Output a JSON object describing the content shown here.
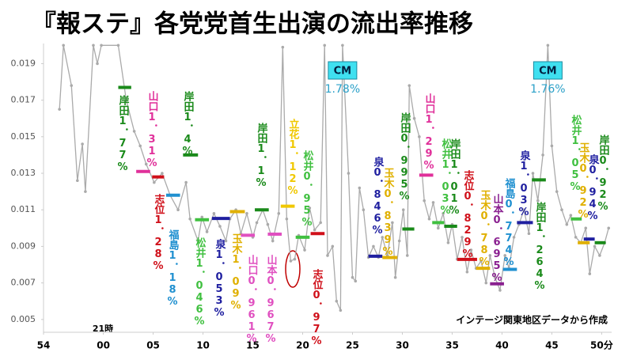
{
  "chart_data": {
    "type": "line",
    "title": "『報ステ』各党党首生出演の流出率推移",
    "source": "インテージ関東地区データから作成",
    "hour_label": "21時",
    "color": "#aaaaaa",
    "x": [
      1.6,
      2.0,
      2.8,
      3.4,
      3.9,
      4.2,
      5.0,
      5.4,
      5.8,
      7.5,
      8.3,
      9.1,
      9.7,
      10.3,
      11.1,
      11.9,
      12.7,
      13.5,
      14.3,
      14.7,
      15.5,
      15.9,
      16.4,
      17.1,
      17.7,
      18.3,
      18.7,
      19.3,
      19.8,
      20.4,
      21.0,
      21.4,
      22.0,
      22.5,
      23.0,
      23.6,
      24.0,
      24.4,
      24.8,
      25.2,
      25.6,
      26.2,
      26.7,
      27.2,
      27.8,
      28.2,
      28.5,
      29.0,
      29.4,
      29.8,
      30.0,
      30.6,
      31.0,
      31.3,
      31.7,
      32.1,
      32.6,
      33.1,
      33.6,
      34.0,
      34.5,
      35.0,
      35.3,
      35.7,
      36.1,
      36.5,
      36.7,
      37.2,
      37.7,
      38.2,
      38.7,
      39.1,
      39.6,
      40.1,
      40.6,
      41.0,
      41.5,
      42.0,
      42.5,
      42.9,
      43.4,
      43.9,
      44.4,
      44.8,
      45.3,
      45.8,
      46.3,
      46.7,
      47.2,
      47.7,
      48.2,
      48.7,
      49.1,
      49.6,
      50.1,
      50.6,
      51.0,
      51.5,
      52.0,
      52.5,
      52.9,
      53.4,
      53.9,
      54.4,
      54.8,
      55.3,
      55.8,
      56.3,
      56.7
    ],
    "values": [
      0.0165,
      0.02,
      0.0178,
      0.0126,
      0.0146,
      0.012,
      0.02,
      0.019,
      0.02,
      0.02,
      0.017,
      0.0153,
      0.0145,
      0.0135,
      0.0125,
      0.013,
      0.0118,
      0.011,
      0.0125,
      0.0105,
      0.0093,
      0.0106,
      0.0098,
      0.0108,
      0.0101,
      0.0093,
      0.0105,
      0.011,
      0.0097,
      0.0108,
      0.0095,
      0.0103,
      0.011,
      0.0102,
      0.0093,
      0.0108,
      0.0199,
      0.0105,
      0.0082,
      0.0083,
      0.0096,
      0.0088,
      0.0111,
      0.0099,
      0.0103,
      0.02,
      0.0085,
      0.009,
      0.006,
      0.0055,
      0.02,
      0.013,
      0.0073,
      0.0071,
      0.0122,
      0.011,
      0.0084,
      0.009,
      0.0084,
      0.0095,
      0.0085,
      0.0103,
      0.0073,
      0.0093,
      0.011,
      0.0085,
      0.0178,
      0.016,
      0.015,
      0.0115,
      0.0105,
      0.0114,
      0.01,
      0.0108,
      0.0092,
      0.0102,
      0.0083,
      0.0095,
      0.0076,
      0.0088,
      0.0078,
      0.0082,
      0.007,
      0.0085,
      0.0073,
      0.0066,
      0.0085,
      0.0078,
      0.0095,
      0.0102,
      0.011,
      0.0097,
      0.013,
      0.0115,
      0.014,
      0.02,
      0.0145,
      0.012,
      0.011,
      0.0102,
      0.0107,
      0.0095,
      0.0092,
      0.01,
      0.0075,
      0.009,
      0.0085,
      0.0092,
      0.01
    ],
    "xlim": [
      0,
      57
    ],
    "ylim": [
      0.0043,
      0.0201
    ],
    "yticks": [
      0.005,
      0.007,
      0.009,
      0.011,
      0.013,
      0.015,
      0.017,
      0.019
    ],
    "xticks": [
      {
        "value": 0,
        "label": "54"
      },
      {
        "value": 6,
        "label": "00"
      },
      {
        "value": 11,
        "label": "05"
      },
      {
        "value": 16,
        "label": "10"
      },
      {
        "value": 21,
        "label": "15"
      },
      {
        "value": 26,
        "label": "20"
      },
      {
        "value": 31,
        "label": "25"
      },
      {
        "value": 36,
        "label": "30"
      },
      {
        "value": 41,
        "label": "35"
      },
      {
        "value": 46,
        "label": "40"
      },
      {
        "value": 51,
        "label": "45"
      },
      {
        "value": 56,
        "label": "50分"
      }
    ],
    "cm_notes": [
      {
        "label": "CM",
        "value_label": "1.78%",
        "x": 30.0
      },
      {
        "label": "CM",
        "value_label": "1.76%",
        "x": 50.6
      }
    ],
    "segments": [
      {
        "label": "岸田1．77%",
        "value": 0.0177,
        "x": [
          7.5,
          8.8
        ],
        "color": "#1a8a1a"
      },
      {
        "label": "山口1．31%",
        "value": 0.0131,
        "x": [
          9.3,
          10.7
        ],
        "color": "#e0309a"
      },
      {
        "label": "志位1．28%",
        "value": 0.0128,
        "x": [
          10.9,
          12.1
        ],
        "color": "#d0101a"
      },
      {
        "label": "福島1．18%",
        "value": 0.0118,
        "x": [
          12.3,
          13.7
        ],
        "color": "#2090d0"
      },
      {
        "label": "岸田1．4%",
        "value": 0.014,
        "x": [
          14.0,
          15.5
        ],
        "color": "#1a8a1a"
      },
      {
        "label": "松井1．046%",
        "value": 0.01046,
        "x": [
          15.2,
          16.6
        ],
        "color": "#40c040"
      },
      {
        "label": "泉1．053%",
        "value": 0.01053,
        "x": [
          16.9,
          18.7
        ],
        "color": "#2020a0"
      },
      {
        "label": "玉木1．09%",
        "value": 0.0109,
        "x": [
          18.7,
          20.2
        ],
        "color": "#e0b000"
      },
      {
        "label": "山口0．961%",
        "value": 0.00961,
        "x": [
          19.8,
          21.2
        ],
        "color": "#e050c0"
      },
      {
        "label": "岸田1．1%",
        "value": 0.011,
        "x": [
          21.2,
          22.6
        ],
        "color": "#1a8a1a"
      },
      {
        "label": "山本0．967%",
        "value": 0.00967,
        "x": [
          22.5,
          23.9
        ],
        "color": "#e050c0"
      },
      {
        "label": "立花1．12%",
        "value": 0.0112,
        "x": [
          23.8,
          25.2
        ],
        "color": "#f0c800"
      },
      {
        "label": "松井0．95%",
        "value": 0.0095,
        "x": [
          25.3,
          26.7
        ],
        "color": "#40c040"
      },
      {
        "label": "志位0．97%",
        "value": 0.0097,
        "x": [
          26.8,
          28.2
        ],
        "color": "#d0101a"
      },
      {
        "label": "岸田0．995%",
        "value": 0.00995,
        "x": [
          36.0,
          37.2
        ],
        "color": "#1a8a1a"
      },
      {
        "label": "泉0．846%",
        "value": 0.00846,
        "x": [
          32.6,
          34.0
        ],
        "color": "#2020a0"
      },
      {
        "label": "玉木0．839%",
        "value": 0.00839,
        "x": [
          34.0,
          35.5
        ],
        "color": "#e0b000"
      },
      {
        "label": "山口1．29%",
        "value": 0.0129,
        "x": [
          37.7,
          39.1
        ],
        "color": "#e0309a"
      },
      {
        "label": "松井1．03%",
        "value": 0.0103,
        "x": [
          39.0,
          40.2
        ],
        "color": "#40c040"
      },
      {
        "label": "岸田1．01%",
        "value": 0.0101,
        "x": [
          40.2,
          41.5
        ],
        "color": "#1a8a1a"
      },
      {
        "label": "志位0．829%",
        "value": 0.00829,
        "x": [
          41.5,
          43.5
        ],
        "color": "#d0101a"
      },
      {
        "label": "玉木0．78%",
        "value": 0.0078,
        "x": [
          43.4,
          44.8
        ],
        "color": "#e0b000"
      },
      {
        "label": "山本0．695%",
        "value": 0.00695,
        "x": [
          44.8,
          46.2
        ],
        "color": "#8a2090"
      },
      {
        "label": "福島0．774%",
        "value": 0.00774,
        "x": [
          46.1,
          47.5
        ],
        "color": "#2090d0"
      },
      {
        "label": "泉1．03%",
        "value": 0.0103,
        "x": [
          47.5,
          49.1
        ],
        "color": "#2020a0"
      },
      {
        "label": "岸田1．264%",
        "value": 0.01264,
        "x": [
          49.0,
          50.4
        ],
        "color": "#1a8a1a"
      },
      {
        "label": "松井1．05%",
        "value": 0.0105,
        "x": [
          52.9,
          54.0
        ],
        "color": "#40c040"
      },
      {
        "label": "玉木0．92%",
        "value": 0.0092,
        "x": [
          53.6,
          54.8
        ],
        "color": "#e0b000"
      },
      {
        "label": "泉0．94%",
        "value": 0.0094,
        "x": [
          54.2,
          55.3
        ],
        "color": "#2020a0"
      },
      {
        "label": "岸田0．92%",
        "value": 0.0092,
        "x": [
          55.3,
          56.4
        ],
        "color": "#1a8a1a"
      }
    ]
  }
}
